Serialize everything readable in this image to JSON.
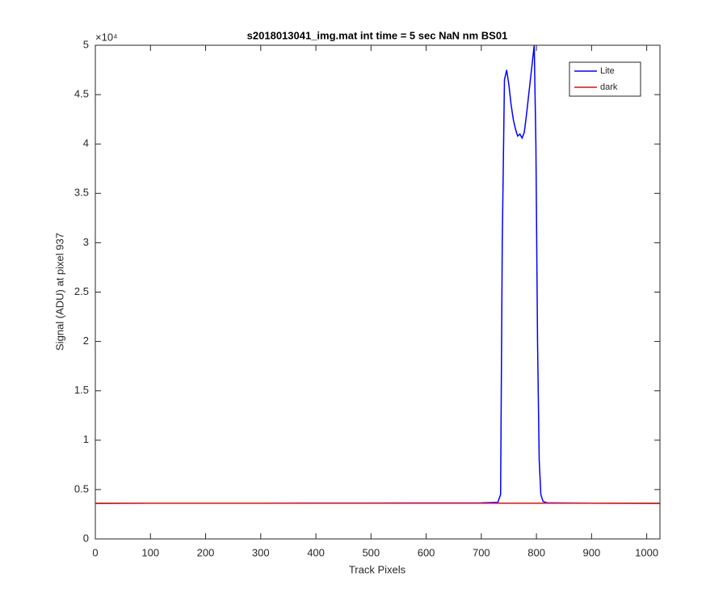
{
  "chart_data": {
    "type": "line",
    "title": "s2018013041_img.mat int time = 5 sec  NaN nm BS01",
    "x_label": "Track Pixels",
    "y_label": "Signal (ADU) at pixel 937",
    "y_multiplier": "×10⁴",
    "xlim": [
      0,
      1024
    ],
    "xticks": [
      0,
      100,
      200,
      300,
      400,
      500,
      600,
      700,
      800,
      900,
      1000
    ],
    "ylim": [
      0,
      50000
    ],
    "yticks": [
      {
        "value": 0,
        "label": "0"
      },
      {
        "value": 5000,
        "label": "0.5"
      },
      {
        "value": 10000,
        "label": "1"
      },
      {
        "value": 15000,
        "label": "1.5"
      },
      {
        "value": 20000,
        "label": "2"
      },
      {
        "value": 25000,
        "label": "2.5"
      },
      {
        "value": 30000,
        "label": "3"
      },
      {
        "value": 35000,
        "label": "3.5"
      },
      {
        "value": 40000,
        "label": "4"
      },
      {
        "value": 45000,
        "label": "4.5"
      },
      {
        "value": 50000,
        "label": "5"
      }
    ],
    "grid": false,
    "legend": "northeast",
    "series": [
      {
        "name": "Lite",
        "color": "#0000ff",
        "x": [
          1,
          100,
          200,
          300,
          400,
          500,
          600,
          700,
          730,
          735,
          738,
          742,
          746,
          750,
          754,
          758,
          762,
          766,
          770,
          774,
          778,
          782,
          786,
          790,
          793,
          796,
          799,
          802,
          805,
          808,
          812,
          820,
          900,
          1024
        ],
        "values": [
          3600,
          3620,
          3620,
          3620,
          3630,
          3630,
          3640,
          3650,
          3700,
          4500,
          30000,
          46500,
          47500,
          46000,
          44000,
          42500,
          41500,
          40800,
          41000,
          40600,
          41200,
          43000,
          45000,
          47000,
          48500,
          50000,
          40000,
          20000,
          8000,
          4500,
          3800,
          3650,
          3620,
          3600
        ]
      },
      {
        "name": "dark",
        "color": "#ff0000",
        "x": [
          1,
          512,
          1024
        ],
        "values": [
          3620,
          3620,
          3620
        ]
      }
    ]
  }
}
